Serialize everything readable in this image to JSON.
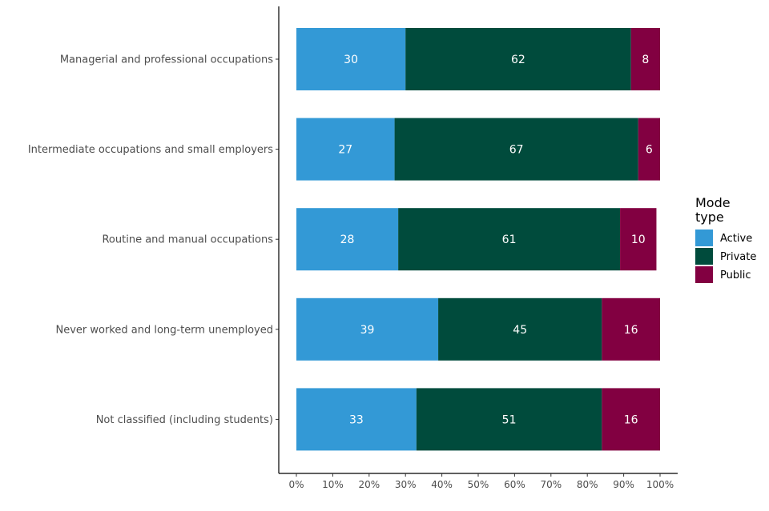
{
  "chart_data": {
    "type": "bar",
    "orientation": "horizontal",
    "stacked": true,
    "title": "",
    "xlabel": "",
    "ylabel": "",
    "xlim": [
      0,
      100
    ],
    "x_tick_values": [
      0,
      10,
      20,
      30,
      40,
      50,
      60,
      70,
      80,
      90,
      100
    ],
    "x_tick_labels": [
      "0%",
      "10%",
      "20%",
      "30%",
      "40%",
      "50%",
      "60%",
      "70%",
      "80%",
      "90%",
      "100%"
    ],
    "categories": [
      "Managerial and professional occupations",
      "Intermediate occupations and small employers",
      "Routine and manual occupations",
      "Never worked and long-term unemployed",
      "Not classified (including students)"
    ],
    "series": [
      {
        "name": "Active",
        "color": "#3399d6",
        "values": [
          30,
          27,
          28,
          39,
          33
        ]
      },
      {
        "name": "Private",
        "color": "#004b3c",
        "values": [
          62,
          67,
          61,
          45,
          51
        ]
      },
      {
        "name": "Public",
        "color": "#820041",
        "values": [
          8,
          6,
          10,
          16,
          16
        ]
      }
    ],
    "legend": {
      "title_lines": [
        "Mode",
        "type"
      ],
      "position": "right"
    }
  }
}
